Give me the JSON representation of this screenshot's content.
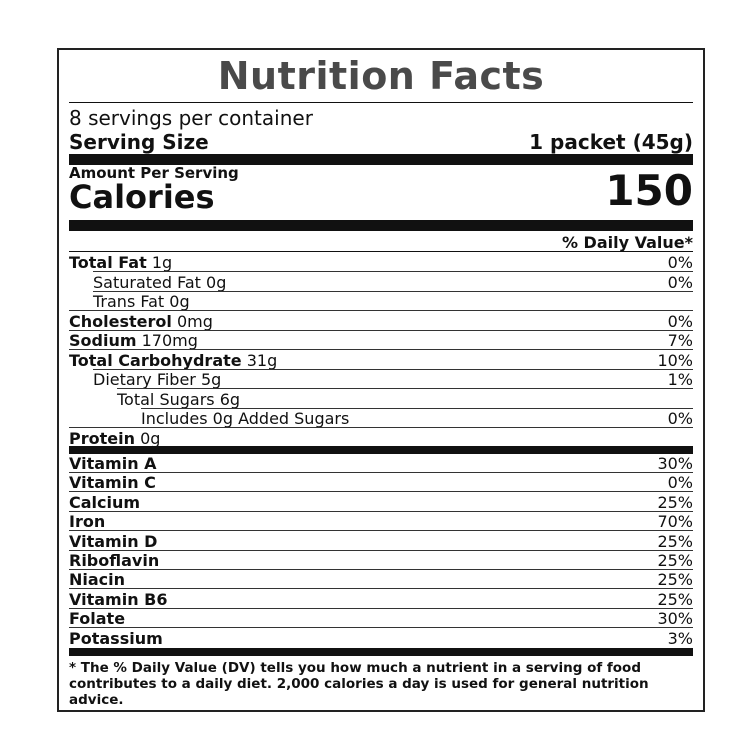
{
  "title": "Nutrition Facts",
  "servings_per_container": "8 servings per container",
  "serving_size": {
    "label": "Serving Size",
    "value": "1 packet (45g)"
  },
  "amount_per_serving": "Amount Per Serving",
  "calories": {
    "label": "Calories",
    "value": "150"
  },
  "daily_value_header": "% Daily Value*",
  "nutrients": [
    {
      "name": "Total Fat",
      "amount": "1g",
      "dv": "0%"
    },
    {
      "name": "Saturated Fat 0g",
      "amount": "",
      "dv": "0%"
    },
    {
      "name": "Trans Fat 0g",
      "amount": "",
      "dv": ""
    },
    {
      "name": "Cholesterol",
      "amount": "0mg",
      "dv": "0%"
    },
    {
      "name": "Sodium",
      "amount": "170mg",
      "dv": "7%"
    },
    {
      "name": "Total Carbohydrate",
      "amount": "31g",
      "dv": "10%"
    },
    {
      "name": "Dietary Fiber 5g",
      "amount": "",
      "dv": "1%"
    },
    {
      "name": "Total Sugars 6g",
      "amount": "",
      "dv": ""
    },
    {
      "name": "Includes 0g Added Sugars",
      "amount": "",
      "dv": "0%"
    },
    {
      "name": "Protein",
      "amount": "0g",
      "dv": ""
    }
  ],
  "vitamins": [
    {
      "name": "Vitamin A",
      "dv": "30%"
    },
    {
      "name": "Vitamin C",
      "dv": "0%"
    },
    {
      "name": "Calcium",
      "dv": "25%"
    },
    {
      "name": "Iron",
      "dv": "70%"
    },
    {
      "name": "Vitamin D",
      "dv": "25%"
    },
    {
      "name": "Riboflavin",
      "dv": "25%"
    },
    {
      "name": "Niacin",
      "dv": "25%"
    },
    {
      "name": "Vitamin B6",
      "dv": "25%"
    },
    {
      "name": "Folate",
      "dv": "30%"
    },
    {
      "name": "Potassium",
      "dv": "3%"
    }
  ],
  "footnote": "* The % Daily Value (DV) tells you how much a nutrient in a serving of food contributes to a daily diet. 2,000 calories a day is used for general nutrition advice."
}
